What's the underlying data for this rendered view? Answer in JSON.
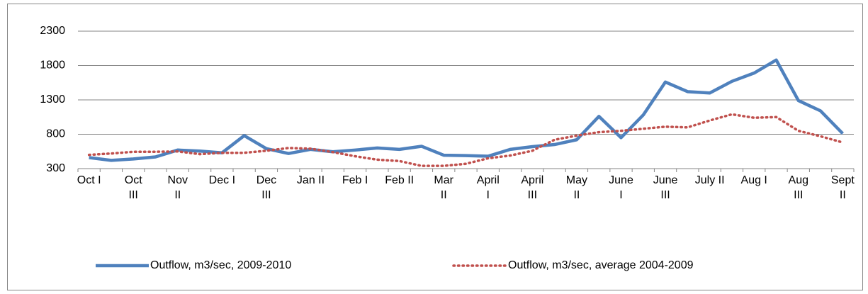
{
  "chart_data": {
    "type": "line",
    "categories": [
      "Oct I",
      null,
      "Oct\nIII",
      null,
      "Nov\nII",
      null,
      "Dec I",
      null,
      "Dec\nIII",
      null,
      "Jan II",
      null,
      "Feb I",
      null,
      "Feb II",
      null,
      "Mar\nII",
      null,
      "April\nI",
      null,
      "April\nIII",
      null,
      "May\nII",
      null,
      "June\nI",
      null,
      "June\nIII",
      null,
      "July II",
      null,
      "Aug I",
      null,
      "Aug\nIII",
      null,
      "Sept\nII"
    ],
    "series": [
      {
        "name": "Outflow, m3/sec, 2009-2010",
        "color": "#4f81bd",
        "style": "solid",
        "values": [
          460,
          420,
          440,
          470,
          570,
          555,
          530,
          780,
          590,
          520,
          580,
          545,
          570,
          600,
          580,
          625,
          495,
          490,
          480,
          580,
          620,
          650,
          720,
          1060,
          750,
          1080,
          1560,
          1420,
          1400,
          1570,
          1690,
          1880,
          1290,
          1140,
          810
        ]
      },
      {
        "name": "Outflow, m3/sec, average 2004-2009",
        "color": "#c0504d",
        "style": "dotted",
        "values": [
          500,
          520,
          545,
          545,
          550,
          510,
          530,
          530,
          560,
          600,
          590,
          540,
          480,
          430,
          410,
          340,
          340,
          370,
          450,
          490,
          560,
          720,
          780,
          830,
          850,
          880,
          910,
          900,
          1000,
          1090,
          1040,
          1050,
          850,
          770,
          680
        ]
      }
    ],
    "ylim": [
      300,
      2300
    ],
    "yticks": [
      300,
      800,
      1300,
      1800,
      2300
    ],
    "grid": true,
    "legend": "bottom"
  }
}
